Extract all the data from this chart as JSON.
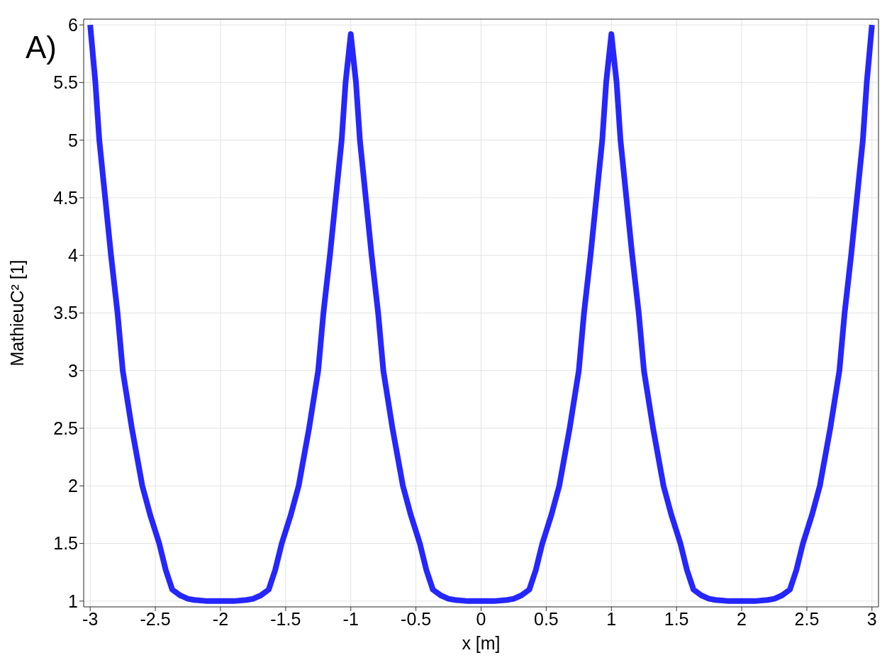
{
  "chart_data": {
    "type": "line",
    "xlabel": "x [m]",
    "ylabel": "MathieuC² [1]",
    "annotations": [
      "A)"
    ],
    "xlim": [
      -3.05,
      3.05
    ],
    "ylim": [
      0.95,
      6.05
    ],
    "xticks": [
      -3,
      -2.5,
      -2,
      -1.5,
      -1,
      -0.5,
      0,
      0.5,
      1,
      1.5,
      2,
      2.5,
      3
    ],
    "yticks": [
      1,
      1.5,
      2,
      2.5,
      3,
      3.5,
      4,
      4.5,
      5,
      5.5,
      6
    ],
    "grid": true,
    "marker": "none",
    "line_style": "solid",
    "x": [
      -3,
      -2.96,
      -2.93,
      -2.885,
      -2.84,
      -2.79,
      -2.75,
      -2.68,
      -2.6,
      -2.54,
      -2.47,
      -2.42,
      -2.37,
      -2.31,
      -2.25,
      -2.2,
      -2.1,
      -2,
      -1.9,
      -1.8,
      -1.75,
      -1.69,
      -1.63,
      -1.58,
      -1.53,
      -1.46,
      -1.4,
      -1.32,
      -1.25,
      -1.21,
      -1.16,
      -1.115,
      -1.07,
      -1.04,
      -1,
      -0.96,
      -0.93,
      -0.885,
      -0.84,
      -0.79,
      -0.75,
      -0.68,
      -0.6,
      -0.54,
      -0.47,
      -0.42,
      -0.37,
      -0.31,
      -0.25,
      -0.2,
      -0.1,
      0,
      0.1,
      0.2,
      0.25,
      0.31,
      0.37,
      0.42,
      0.47,
      0.54,
      0.6,
      0.68,
      0.75,
      0.79,
      0.84,
      0.885,
      0.93,
      0.96,
      1,
      1.04,
      1.07,
      1.115,
      1.16,
      1.21,
      1.25,
      1.32,
      1.4,
      1.46,
      1.53,
      1.58,
      1.63,
      1.69,
      1.75,
      1.8,
      1.9,
      2,
      2.1,
      2.2,
      2.25,
      2.31,
      2.37,
      2.42,
      2.47,
      2.54,
      2.6,
      2.68,
      2.75,
      2.79,
      2.84,
      2.885,
      2.93,
      2.96,
      3
    ],
    "series": [
      {
        "color": "#0000ff",
        "values": [
          6,
          5.5,
          5,
          4.5,
          4,
          3.5,
          3,
          2.5,
          2,
          1.75,
          1.5,
          1.27,
          1.1,
          1.05,
          1.02,
          1.01,
          1,
          1,
          1,
          1.01,
          1.02,
          1.05,
          1.1,
          1.27,
          1.5,
          1.75,
          2,
          2.5,
          3,
          3.5,
          4,
          4.5,
          5,
          5.5,
          5.92,
          5.5,
          5,
          4.5,
          4,
          3.5,
          3,
          2.5,
          2,
          1.75,
          1.5,
          1.27,
          1.1,
          1.05,
          1.02,
          1.01,
          1,
          1,
          1,
          1.01,
          1.02,
          1.05,
          1.1,
          1.27,
          1.5,
          1.75,
          2,
          2.5,
          3,
          3.5,
          4,
          4.5,
          5,
          5.5,
          5.92,
          5.5,
          5,
          4.5,
          4,
          3.5,
          3,
          2.5,
          2,
          1.75,
          1.5,
          1.27,
          1.1,
          1.05,
          1.02,
          1.01,
          1,
          1,
          1,
          1.01,
          1.02,
          1.05,
          1.1,
          1.27,
          1.5,
          1.75,
          2,
          2.5,
          3,
          3.5,
          4,
          4.5,
          5,
          5.5,
          6
        ]
      }
    ]
  }
}
